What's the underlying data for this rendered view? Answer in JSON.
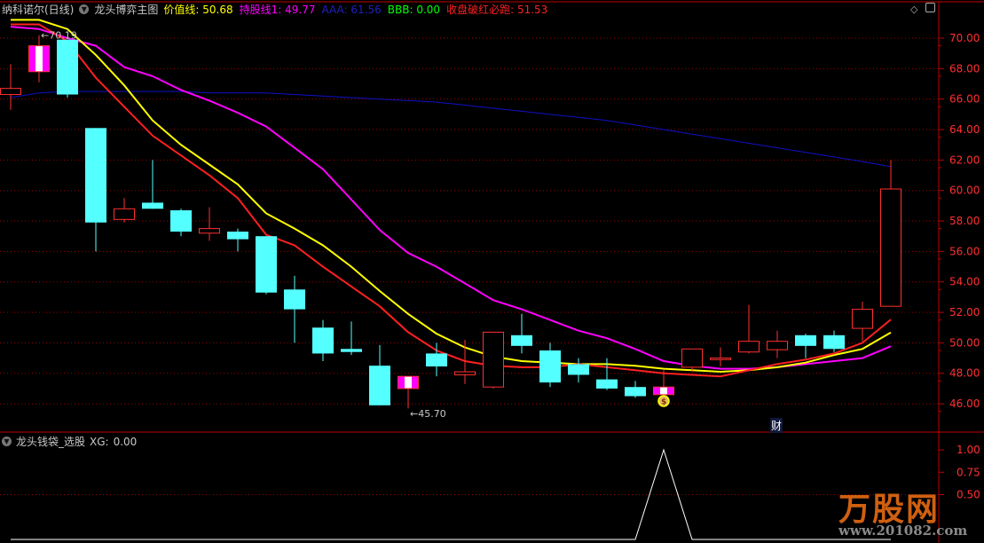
{
  "header": {
    "stock_name": "纳科诺尔(日线)",
    "indicator_name": "龙头博弈主图",
    "items": [
      {
        "label": "价值线:",
        "value": "50.68",
        "color": "#ffff00"
      },
      {
        "label": "持股线1:",
        "value": "49.77",
        "color": "#ff00ff"
      },
      {
        "label": "AAA:",
        "value": "61.56",
        "color": "#2020c0"
      },
      {
        "label": "BBB:",
        "value": "0.00",
        "color": "#00ff00"
      },
      {
        "label": "收盘破红必跑:",
        "value": "51.53",
        "color": "#ff2020"
      }
    ]
  },
  "sub_header": {
    "indicator_name": "龙头钱袋_选股",
    "xg_label": "XG:",
    "xg_value": "0.00"
  },
  "marker_label": "财",
  "logo": {
    "name": "万股网",
    "url": "www.201082.com"
  },
  "colors": {
    "up": "#ff3030",
    "down": "#54ffff",
    "mark": "#ff00ff",
    "axis": "#c00000",
    "axis_text": "#ff3030",
    "grid": "#a00000"
  },
  "chart_data": [
    {
      "type": "candlestick",
      "title": "",
      "ylim": [
        45,
        71.5
      ],
      "y_ticks": [
        "70.00",
        "68.00",
        "66.00",
        "64.00",
        "62.00",
        "60.00",
        "58.00",
        "56.00",
        "54.00",
        "52.00",
        "50.00",
        "48.00",
        "46.00"
      ],
      "grid": true,
      "annotations": [
        {
          "text": "←70.19",
          "candle": 2
        },
        {
          "text": "←45.70",
          "candle": 15
        }
      ],
      "candles": [
        {
          "o": 66.3,
          "h": 68.3,
          "l": 65.3,
          "c": 66.7,
          "style": "up"
        },
        {
          "o": 67.8,
          "h": 70.19,
          "l": 67.1,
          "c": 69.5,
          "style": "mark"
        },
        {
          "o": 69.9,
          "h": 69.9,
          "l": 66.1,
          "c": 66.3,
          "style": "down"
        },
        {
          "o": 64.1,
          "h": 64.1,
          "l": 56.0,
          "c": 57.9,
          "style": "down"
        },
        {
          "o": 58.1,
          "h": 59.5,
          "l": 57.9,
          "c": 58.8,
          "style": "up"
        },
        {
          "o": 59.2,
          "h": 62.0,
          "l": 58.8,
          "c": 58.8,
          "style": "down"
        },
        {
          "o": 58.7,
          "h": 58.8,
          "l": 57.0,
          "c": 57.3,
          "style": "down"
        },
        {
          "o": 57.2,
          "h": 58.9,
          "l": 56.7,
          "c": 57.5,
          "style": "up"
        },
        {
          "o": 57.3,
          "h": 57.5,
          "l": 56.0,
          "c": 56.8,
          "style": "down"
        },
        {
          "o": 57.0,
          "h": 57.0,
          "l": 53.2,
          "c": 53.3,
          "style": "down"
        },
        {
          "o": 53.5,
          "h": 54.4,
          "l": 50.0,
          "c": 52.2,
          "style": "down"
        },
        {
          "o": 51.0,
          "h": 51.5,
          "l": 48.8,
          "c": 49.3,
          "style": "down"
        },
        {
          "o": 49.6,
          "h": 51.4,
          "l": 49.2,
          "c": 49.4,
          "style": "down"
        },
        {
          "o": 48.5,
          "h": 49.85,
          "l": 45.9,
          "c": 45.9,
          "style": "down"
        },
        {
          "o": 47.0,
          "h": 47.8,
          "l": 45.7,
          "c": 47.8,
          "style": "mark"
        },
        {
          "o": 49.3,
          "h": 50.0,
          "l": 47.8,
          "c": 48.45,
          "style": "down"
        },
        {
          "o": 47.9,
          "h": 50.2,
          "l": 47.3,
          "c": 48.1,
          "style": "up"
        },
        {
          "o": 47.1,
          "h": 50.7,
          "l": 47.0,
          "c": 50.7,
          "style": "up"
        },
        {
          "o": 50.5,
          "h": 51.9,
          "l": 49.3,
          "c": 49.8,
          "style": "down"
        },
        {
          "o": 49.5,
          "h": 50.0,
          "l": 47.1,
          "c": 47.4,
          "style": "down"
        },
        {
          "o": 48.6,
          "h": 49.0,
          "l": 47.4,
          "c": 47.9,
          "style": "down"
        },
        {
          "o": 47.6,
          "h": 49.0,
          "l": 46.9,
          "c": 47.0,
          "style": "down"
        },
        {
          "o": 47.1,
          "h": 47.5,
          "l": 46.4,
          "c": 46.5,
          "style": "down"
        },
        {
          "o": 46.6,
          "h": 48.2,
          "l": 46.6,
          "c": 47.1,
          "style": "mark"
        },
        {
          "o": 48.4,
          "h": 49.6,
          "l": 48.1,
          "c": 49.6,
          "style": "up"
        },
        {
          "o": 48.9,
          "h": 49.7,
          "l": 48.45,
          "c": 49.0,
          "style": "up"
        },
        {
          "o": 49.4,
          "h": 52.5,
          "l": 49.3,
          "c": 50.1,
          "style": "up"
        },
        {
          "o": 49.55,
          "h": 50.8,
          "l": 49.0,
          "c": 50.1,
          "style": "up"
        },
        {
          "o": 50.5,
          "h": 50.6,
          "l": 49.0,
          "c": 49.8,
          "style": "down"
        },
        {
          "o": 50.5,
          "h": 50.8,
          "l": 49.4,
          "c": 49.6,
          "style": "down"
        },
        {
          "o": 50.95,
          "h": 52.7,
          "l": 50.1,
          "c": 52.2,
          "style": "up"
        },
        {
          "o": 52.4,
          "h": 62.0,
          "l": 52.4,
          "c": 60.1,
          "style": "up"
        }
      ],
      "series": [
        {
          "name": "收盘破红必跑",
          "color": "#ff2020",
          "values": [
            70.9,
            70.9,
            69.8,
            67.4,
            65.5,
            63.6,
            62.3,
            61.0,
            59.5,
            57.1,
            56.4,
            55.0,
            53.7,
            52.4,
            50.7,
            49.5,
            48.8,
            48.5,
            48.4,
            48.4,
            48.6,
            48.4,
            48.2,
            48.0,
            47.9,
            47.8,
            48.2,
            48.6,
            48.9,
            49.3,
            50.0,
            51.53
          ]
        },
        {
          "name": "价值线",
          "color": "#ffff00",
          "values": [
            71.2,
            71.2,
            70.6,
            68.9,
            66.9,
            64.6,
            63.0,
            61.7,
            60.4,
            58.5,
            57.5,
            56.4,
            55.0,
            53.4,
            51.9,
            50.6,
            49.7,
            49.1,
            48.8,
            48.7,
            48.6,
            48.6,
            48.5,
            48.3,
            48.2,
            48.1,
            48.2,
            48.4,
            48.7,
            49.2,
            49.6,
            50.68
          ]
        },
        {
          "name": "持股线1",
          "color": "#ff00ff",
          "values": [
            70.75,
            70.6,
            70.0,
            69.5,
            68.1,
            67.5,
            66.6,
            65.9,
            65.1,
            64.2,
            62.8,
            61.4,
            59.4,
            57.4,
            55.9,
            55.0,
            53.9,
            52.8,
            52.2,
            51.5,
            50.8,
            50.3,
            49.6,
            48.8,
            48.5,
            48.3,
            48.3,
            48.4,
            48.6,
            48.8,
            49.0,
            49.77
          ]
        },
        {
          "name": "AAA",
          "color": "#1010c8",
          "values": [
            66.1,
            66.4,
            66.5,
            66.5,
            66.5,
            66.5,
            66.5,
            66.4,
            66.4,
            66.4,
            66.3,
            66.2,
            66.1,
            66.0,
            65.9,
            65.8,
            65.6,
            65.4,
            65.2,
            65.0,
            64.8,
            64.6,
            64.3,
            64.0,
            63.7,
            63.4,
            63.1,
            62.8,
            62.5,
            62.2,
            61.9,
            61.56
          ]
        }
      ]
    },
    {
      "type": "line",
      "title": "",
      "ylim": [
        0,
        1
      ],
      "y_ticks": [
        "1.00",
        "0.75",
        "0.50"
      ],
      "series": [
        {
          "name": "XG",
          "color": "#ffffff",
          "values": [
            0,
            0,
            0,
            0,
            0,
            0,
            0,
            0,
            0,
            0,
            0,
            0,
            0,
            0,
            0,
            0,
            0,
            0,
            0,
            0,
            0,
            0,
            0,
            1,
            0,
            0,
            0,
            0,
            0,
            0,
            0,
            0
          ]
        }
      ]
    }
  ]
}
